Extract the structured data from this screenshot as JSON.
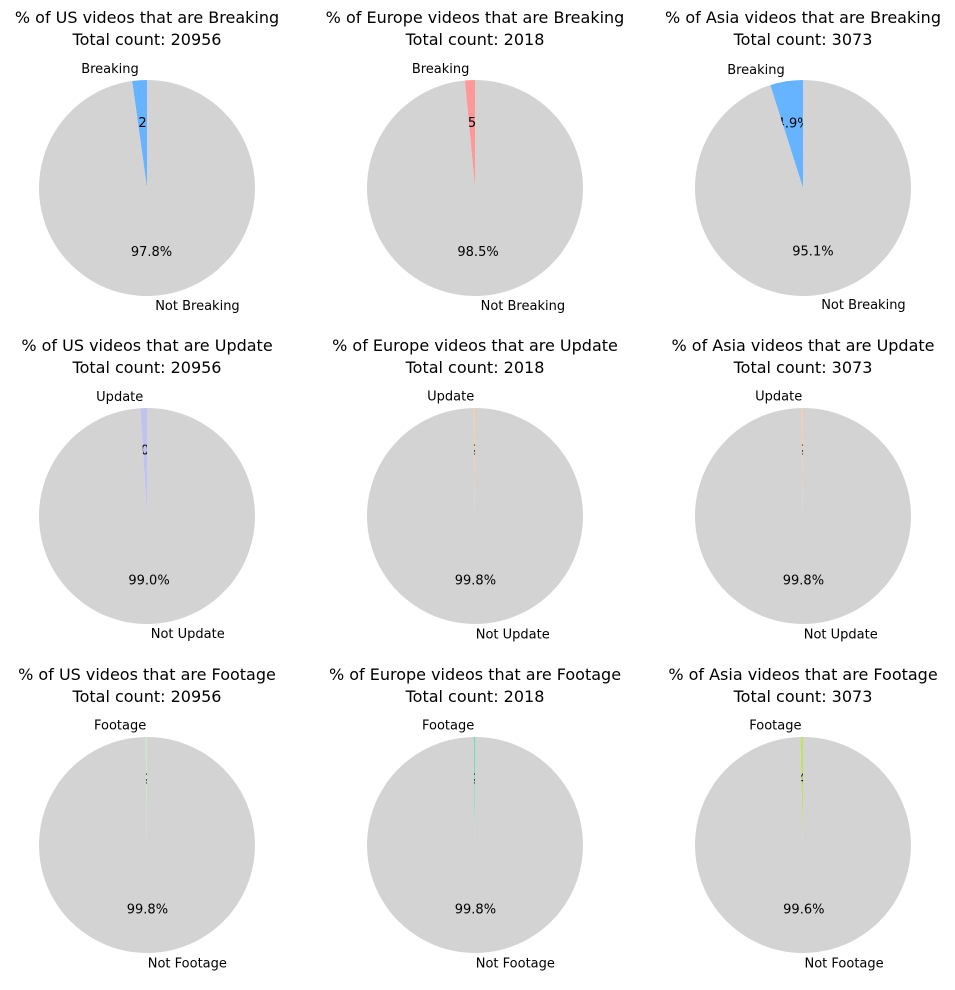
{
  "chart_data": [
    {
      "type": "pie",
      "title": "% of US videos that are Breaking",
      "subtitle": "Total count: 20956",
      "slices": [
        {
          "label": "Breaking",
          "value": 2.2,
          "pct_label": "2.2%",
          "color": "#66b3ff"
        },
        {
          "label": "Not Breaking",
          "value": 97.8,
          "pct_label": "97.8%",
          "color": "#d3d3d3"
        }
      ]
    },
    {
      "type": "pie",
      "title": "% of Europe videos that are Breaking",
      "subtitle": "Total count: 2018",
      "slices": [
        {
          "label": "Breaking",
          "value": 1.5,
          "pct_label": "1.5%",
          "color": "#ff9999"
        },
        {
          "label": "Not Breaking",
          "value": 98.5,
          "pct_label": "98.5%",
          "color": "#d3d3d3"
        }
      ]
    },
    {
      "type": "pie",
      "title": "% of Asia videos that are Breaking",
      "subtitle": "Total count: 3073",
      "slices": [
        {
          "label": "Breaking",
          "value": 4.9,
          "pct_label": "4.9%",
          "color": "#66b3ff"
        },
        {
          "label": "Not Breaking",
          "value": 95.1,
          "pct_label": "95.1%",
          "color": "#d3d3d3"
        }
      ]
    },
    {
      "type": "pie",
      "title": "% of US videos that are Update",
      "subtitle": "Total count: 20956",
      "slices": [
        {
          "label": "Update",
          "value": 1.0,
          "pct_label": "1.0%",
          "color": "#c2c2f0"
        },
        {
          "label": "Not Update",
          "value": 99.0,
          "pct_label": "99.0%",
          "color": "#d3d3d3"
        }
      ]
    },
    {
      "type": "pie",
      "title": "% of Europe videos that are Update",
      "subtitle": "Total count: 2018",
      "slices": [
        {
          "label": "Update",
          "value": 0.2,
          "pct_label": "0.2%",
          "color": "#ffcc99"
        },
        {
          "label": "Not Update",
          "value": 99.8,
          "pct_label": "99.8%",
          "color": "#d3d3d3"
        }
      ]
    },
    {
      "type": "pie",
      "title": "% of Asia videos that are Update",
      "subtitle": "Total count: 3073",
      "slices": [
        {
          "label": "Update",
          "value": 0.2,
          "pct_label": "0.2%",
          "color": "#ffcc99"
        },
        {
          "label": "Not Update",
          "value": 99.8,
          "pct_label": "99.8%",
          "color": "#d3d3d3"
        }
      ]
    },
    {
      "type": "pie",
      "title": "% of US videos that are Footage",
      "subtitle": "Total count: 20956",
      "slices": [
        {
          "label": "Footage",
          "value": 0.2,
          "pct_label": "0.2%",
          "color": "#c2f0c2"
        },
        {
          "label": "Not Footage",
          "value": 99.8,
          "pct_label": "99.8%",
          "color": "#d3d3d3"
        }
      ]
    },
    {
      "type": "pie",
      "title": "% of Europe videos that are Footage",
      "subtitle": "Total count: 2018",
      "slices": [
        {
          "label": "Footage",
          "value": 0.2,
          "pct_label": "0.2%",
          "color": "#66e0c2"
        },
        {
          "label": "Not Footage",
          "value": 99.8,
          "pct_label": "99.8%",
          "color": "#d3d3d3"
        }
      ]
    },
    {
      "type": "pie",
      "title": "% of Asia videos that are Footage",
      "subtitle": "Total count: 3073",
      "slices": [
        {
          "label": "Footage",
          "value": 0.4,
          "pct_label": "0.4%",
          "color": "#c2e066"
        },
        {
          "label": "Not Footage",
          "value": 99.6,
          "pct_label": "99.6%",
          "color": "#d3d3d3"
        }
      ]
    }
  ]
}
